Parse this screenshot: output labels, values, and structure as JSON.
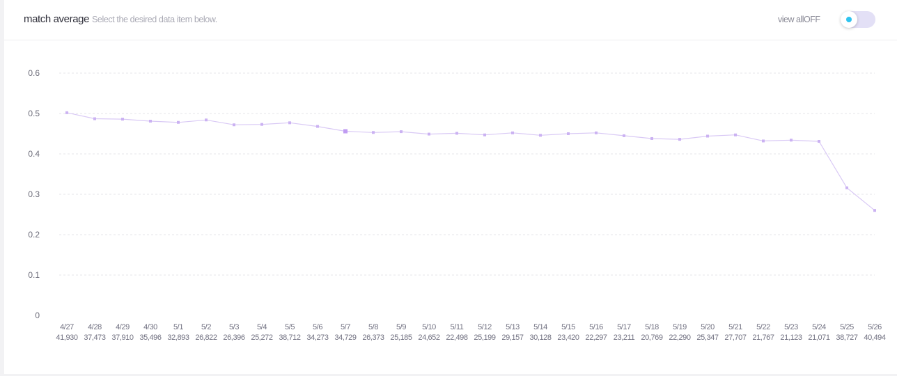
{
  "header": {
    "title": "match average",
    "subtitle": "Select the desired data item below.",
    "view_all_label": "view allOFF"
  },
  "colors": {
    "line": "#d9c9f5",
    "marker": "#cbb2f2",
    "marker_highlight": "#c09cf2",
    "grid": "#e4e4ea",
    "toggle_track": "#e3e0f6",
    "toggle_dot": "#2ec3ef"
  },
  "chart_data": {
    "type": "line",
    "categories": [
      "4/27",
      "4/28",
      "4/29",
      "4/30",
      "5/1",
      "5/2",
      "5/3",
      "5/4",
      "5/5",
      "5/6",
      "5/7",
      "5/8",
      "5/9",
      "5/10",
      "5/11",
      "5/12",
      "5/13",
      "5/14",
      "5/15",
      "5/16",
      "5/17",
      "5/18",
      "5/19",
      "5/20",
      "5/21",
      "5/22",
      "5/23",
      "5/24",
      "5/25",
      "5/26"
    ],
    "category_counts": [
      "41,930",
      "37,473",
      "37,910",
      "35,496",
      "32,893",
      "26,822",
      "26,396",
      "25,272",
      "38,712",
      "34,273",
      "34,729",
      "26,373",
      "25,185",
      "24,652",
      "22,498",
      "25,199",
      "29,157",
      "30,128",
      "23,420",
      "22,297",
      "23,211",
      "20,769",
      "22,290",
      "25,347",
      "27,707",
      "21,767",
      "21,123",
      "21,071",
      "38,727",
      "40,494"
    ],
    "values": [
      0.502,
      0.487,
      0.486,
      0.481,
      0.478,
      0.484,
      0.472,
      0.473,
      0.477,
      0.468,
      0.456,
      0.453,
      0.455,
      0.449,
      0.451,
      0.447,
      0.452,
      0.446,
      0.45,
      0.452,
      0.445,
      0.438,
      0.436,
      0.444,
      0.447,
      0.432,
      0.434,
      0.431,
      0.316,
      0.26
    ],
    "highlight_index": 10,
    "y_ticks": [
      "0",
      "0.1",
      "0.2",
      "0.3",
      "0.4",
      "0.5",
      "0.6"
    ],
    "ylim": [
      0,
      0.6
    ],
    "grid": true
  }
}
